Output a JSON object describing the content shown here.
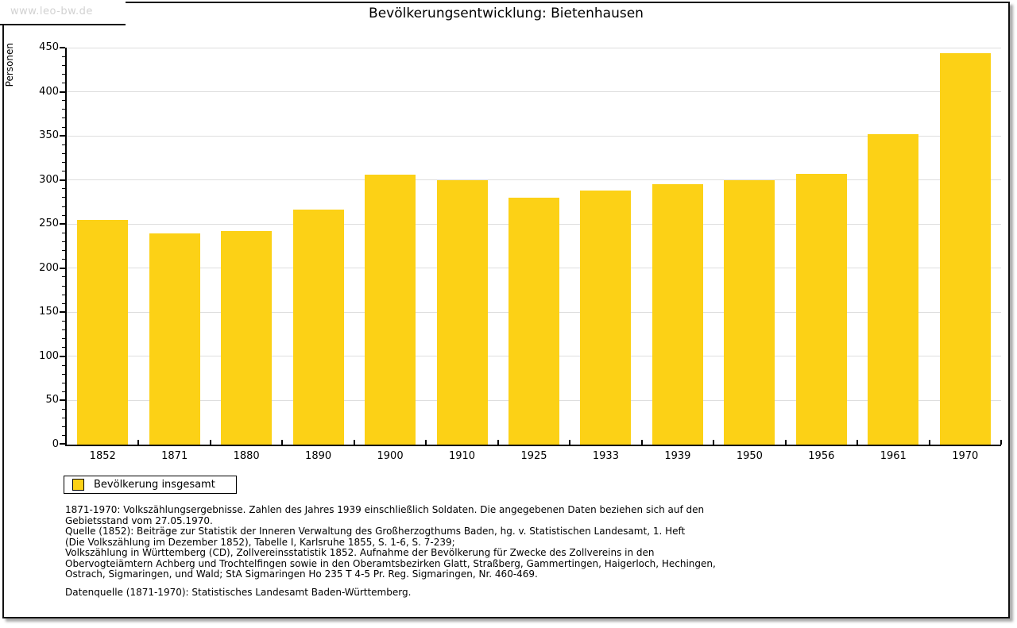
{
  "watermark": "www.leo-bw.de",
  "title": "Bevölkerungsentwicklung: Bietenhausen",
  "chart_data": {
    "type": "bar",
    "title": "Bevölkerungsentwicklung: Bietenhausen",
    "xlabel": "",
    "ylabel": "Personen",
    "categories": [
      "1852",
      "1871",
      "1880",
      "1890",
      "1900",
      "1910",
      "1925",
      "1933",
      "1939",
      "1950",
      "1956",
      "1961",
      "1970"
    ],
    "values": [
      255,
      239,
      242,
      266,
      306,
      300,
      280,
      288,
      295,
      300,
      307,
      352,
      444
    ],
    "ylim": [
      0,
      450
    ],
    "ytick_interval": 50,
    "y_minor_tick_interval": 10,
    "grid": true,
    "bar_color": "#FCD116",
    "legend_position": "bottom-left"
  },
  "legend": {
    "label": "Bevölkerung insgesamt",
    "swatch_color": "#FCD116"
  },
  "footnotes": {
    "lines": [
      "1871-1970: Volkszählungsergebnisse. Zahlen des Jahres 1939 einschließlich Soldaten. Die angegebenen Daten beziehen sich auf den",
      "Gebietsstand vom 27.05.1970.",
      "Quelle (1852): Beiträge zur Statistik der Inneren Verwaltung des Großherzogthums Baden, hg. v. Statistischen Landesamt, 1. Heft",
      "(Die Volkszählung im Dezember 1852), Tabelle I, Karlsruhe 1855, S. 1-6, S. 7-239;",
      "Volkszählung in Württemberg (CD), Zollvereinsstatistik 1852. Aufnahme der Bevölkerung für Zwecke des Zollvereins in den",
      "Obervogteiämtern Achberg und Trochtelfingen sowie in den Oberamtsbezirken Glatt, Straßberg, Gammertingen, Haigerloch, Hechingen,",
      "Ostrach, Sigmaringen, und Wald; StA Sigmaringen Ho 235 T 4-5 Pr. Reg. Sigmaringen, Nr. 460-469."
    ],
    "source": "Datenquelle (1871-1970): Statistisches Landesamt Baden-Württemberg."
  },
  "colors": {
    "bar": "#FCD116",
    "gridline": "#DEDEDE",
    "axis": "#000000",
    "watermark_text": "#D2D2D2",
    "frame_border": "#111111",
    "frame_shadow": "#AAAAAA"
  }
}
